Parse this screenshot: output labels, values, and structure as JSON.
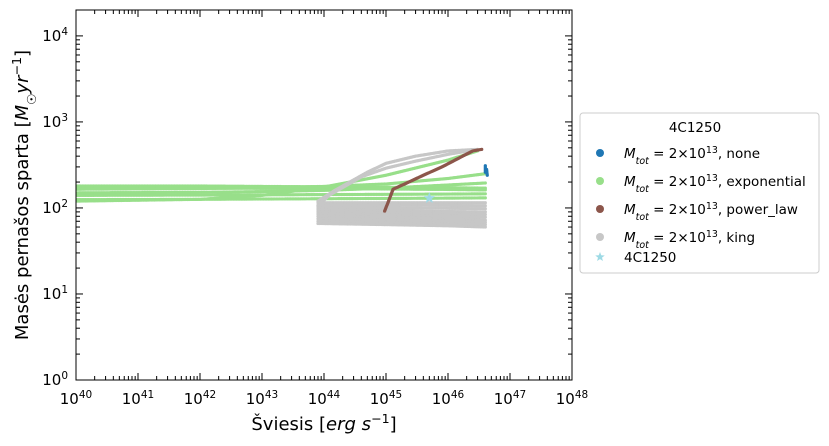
{
  "chart_data": {
    "type": "scatter",
    "xscale": "log",
    "yscale": "log",
    "xlim": [
      1e+40,
      1e+48
    ],
    "ylim": [
      1,
      20000
    ],
    "xlabel": "Šviesis [erg s⁻¹]",
    "ylabel": "Masės pernašos sparta [M☉yr⁻¹]",
    "x_ticks": [
      {
        "exp": "40",
        "value": 1e+40
      },
      {
        "exp": "41",
        "value": 1e+41
      },
      {
        "exp": "42",
        "value": 1e+42
      },
      {
        "exp": "43",
        "value": 1e+43
      },
      {
        "exp": "44",
        "value": 1e+44
      },
      {
        "exp": "45",
        "value": 1e+45
      },
      {
        "exp": "46",
        "value": 1e+46
      },
      {
        "exp": "47",
        "value": 1e+47
      },
      {
        "exp": "48",
        "value": 1e+48
      }
    ],
    "y_ticks": [
      {
        "exp": "0",
        "value": 1
      },
      {
        "exp": "1",
        "value": 10
      },
      {
        "exp": "2",
        "value": 100
      },
      {
        "exp": "3",
        "value": 1000
      },
      {
        "exp": "4",
        "value": 10000
      }
    ],
    "legend": {
      "title": "4C1250",
      "placement": "right, outside",
      "entries": [
        {
          "key": "none",
          "prefix": "M",
          "sub": "tot",
          "eq": " =  2×10",
          "sup": "13",
          "suffix": ", none",
          "marker": "dot",
          "color": "#1f77b4"
        },
        {
          "key": "exponential",
          "prefix": "M",
          "sub": "tot",
          "eq": " =  2×10",
          "sup": "13",
          "suffix": ", exponential",
          "marker": "dot",
          "color": "#98df8a"
        },
        {
          "key": "power_law",
          "prefix": "M",
          "sub": "tot",
          "eq": " =  2×10",
          "sup": "13",
          "suffix": ", power_law",
          "marker": "dot",
          "color": "#8c564b"
        },
        {
          "key": "king",
          "prefix": "M",
          "sub": "tot",
          "eq": " =  2×10",
          "sup": "13",
          "suffix": ", king",
          "marker": "dot",
          "color": "#c7c7c7"
        },
        {
          "key": "observed",
          "label": "4C1250",
          "marker": "star",
          "color": "#9edae5"
        }
      ]
    },
    "series": [
      {
        "key": "exponential",
        "color": "#98df8a",
        "curves": [
          {
            "x": [
              1e+40,
              1e+42,
              1e+43,
              1e+44,
              1e+45,
              1e+46,
              4e+46
            ],
            "y": [
              180,
              180,
              178,
              176,
              174,
              172,
              170
            ]
          },
          {
            "x": [
              1e+40,
              1e+42,
              1e+43,
              1e+44,
              1e+45,
              1e+46,
              4e+46
            ],
            "y": [
              170,
              170,
              169,
              168,
              166,
              164,
              162
            ]
          },
          {
            "x": [
              1e+40,
              1e+42,
              1e+43,
              1e+44,
              1e+45,
              1e+46,
              4e+46
            ],
            "y": [
              165,
              168,
              172,
              178,
              190,
              220,
              250
            ]
          },
          {
            "x": [
              1e+40,
              1e+42,
              1e+43,
              1e+44,
              1e+45,
              1e+46,
              4e+46
            ],
            "y": [
              150,
              152,
              155,
              160,
              170,
              185,
              195
            ]
          },
          {
            "x": [
              1e+40,
              1e+42,
              1e+43,
              1e+44,
              1e+45,
              1e+46,
              4e+46
            ],
            "y": [
              140,
              141,
              142,
              143,
              144,
              145,
              146
            ]
          },
          {
            "x": [
              1e+40,
              1e+42,
              1e+43,
              1e+44,
              1e+45,
              1e+46,
              4e+46
            ],
            "y": [
              125,
              126,
              127,
              128,
              129,
              130,
              131
            ]
          },
          {
            "x": [
              1e+40,
              1e+42,
              1e+43,
              1e+44,
              1e+45,
              1e+46,
              3e+46
            ],
            "y": [
              120,
              126,
              140,
              175,
              240,
              360,
              460
            ]
          }
        ]
      },
      {
        "key": "king",
        "color": "#c7c7c7",
        "curves": [
          {
            "x": [
              8e+43,
              1.5e+44,
              5e+44,
              1e+45,
              3e+45,
              1e+46,
              3e+46
            ],
            "y": [
              120,
              160,
              260,
              330,
              400,
              460,
              480
            ]
          },
          {
            "x": [
              8e+43,
              1.2e+44,
              4e+44,
              1e+45,
              3e+45,
              1e+46,
              2.5e+46
            ],
            "y": [
              105,
              140,
              230,
              290,
              350,
              420,
              470
            ]
          },
          {
            "x": [
              8e+43,
              1e+45,
              1e+46,
              4e+46
            ],
            "y": [
              115,
              115,
              115,
              115
            ]
          },
          {
            "x": [
              8e+43,
              1e+45,
              1e+46,
              4e+46
            ],
            "y": [
              108,
              108,
              107,
              106
            ]
          },
          {
            "x": [
              8e+43,
              1e+45,
              1e+46,
              4e+46
            ],
            "y": [
              100,
              100,
              99,
              98
            ]
          },
          {
            "x": [
              8e+43,
              1e+45,
              1e+46,
              4e+46
            ],
            "y": [
              95,
              93,
              91,
              90
            ]
          },
          {
            "x": [
              8e+43,
              1e+45,
              1e+46,
              4e+46
            ],
            "y": [
              90,
              88,
              86,
              84
            ]
          },
          {
            "x": [
              8e+43,
              1e+45,
              1e+46,
              4e+46
            ],
            "y": [
              85,
              83,
              80,
              78
            ]
          },
          {
            "x": [
              8e+43,
              1e+45,
              1e+46,
              4e+46
            ],
            "y": [
              80,
              78,
              75,
              72
            ]
          },
          {
            "x": [
              8e+43,
              1e+45,
              1e+46,
              4e+46
            ],
            "y": [
              75,
              73,
              70,
              68
            ]
          },
          {
            "x": [
              8e+43,
              1e+45,
              1e+46,
              4e+46
            ],
            "y": [
              70,
              68,
              65,
              64
            ]
          },
          {
            "x": [
              8e+43,
              1e+45,
              1e+46,
              4e+46
            ],
            "y": [
              66,
              64,
              62,
              60
            ]
          }
        ]
      },
      {
        "key": "power_law",
        "color": "#8c564b",
        "curves": [
          {
            "x": [
              9.5e+44,
              1.1e+45,
              1.3e+45,
              2e+45,
              4e+45,
              8e+45,
              1.5e+46,
              2.5e+46,
              3.5e+46
            ],
            "y": [
              92,
              120,
              165,
              190,
              240,
              300,
              380,
              460,
              480
            ]
          }
        ]
      },
      {
        "key": "none",
        "color": "#1f77b4",
        "curves": [
          {
            "x": [
              4e+46,
              4e+46,
              4.2e+46,
              4.3e+46
            ],
            "y": [
              310,
              260,
              280,
              240
            ]
          }
        ]
      },
      {
        "key": "observed",
        "color": "#9edae5",
        "points": [
          {
            "x": 5e+45,
            "y": 130
          }
        ]
      }
    ]
  }
}
